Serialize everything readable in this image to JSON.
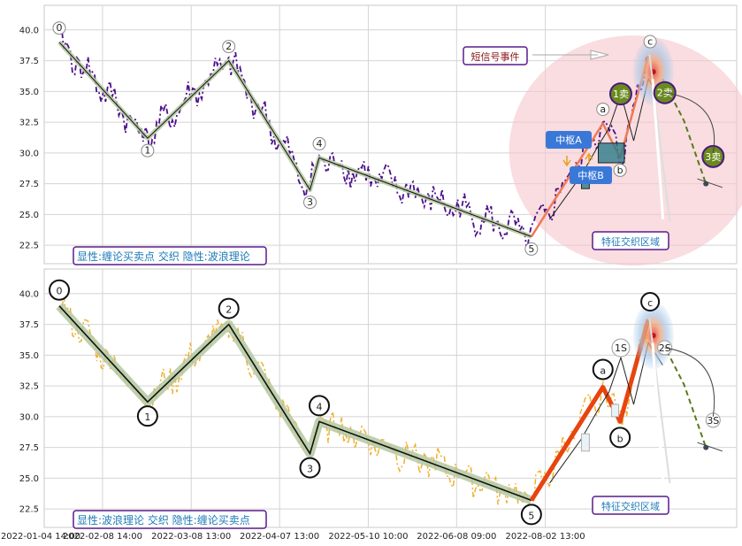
{
  "chart_data": [
    {
      "type": "line",
      "panel": "top",
      "caption": "显性:缠论买卖点 交织 隐性:波浪理论",
      "ylim": [
        21,
        42
      ],
      "yticks": [
        22.5,
        25.0,
        27.5,
        30.0,
        32.5,
        35.0,
        37.5,
        40.0
      ],
      "grid": true,
      "wave_points": [
        {
          "label": "0",
          "x": 0.6,
          "y": 39.0
        },
        {
          "label": "1",
          "x": 25.3,
          "y": 31.2
        },
        {
          "label": "2",
          "x": 48.0,
          "y": 37.5
        },
        {
          "label": "3",
          "x": 70.7,
          "y": 27.0
        },
        {
          "label": "4",
          "x": 73.3,
          "y": 29.6
        },
        {
          "label": "5",
          "x": 132.6,
          "y": 23.2
        }
      ],
      "abc_points": [
        {
          "label": "a",
          "x": 152.6,
          "y": 32.4
        },
        {
          "label": "b",
          "x": 157.4,
          "y": 29.6
        },
        {
          "label": "c",
          "x": 165.3,
          "y": 37.9
        }
      ],
      "zhongshu": [
        {
          "label": "中枢A",
          "x": [
            151.3,
            158.6
          ],
          "y": [
            29.2,
            30.8
          ]
        },
        {
          "label": "中枢B",
          "x": [
            146.6,
            148.8
          ],
          "y": [
            27.1,
            28.6
          ]
        }
      ],
      "sell_points": [
        {
          "label": "1卖",
          "x": 157.6,
          "y": 34.8
        },
        {
          "label": "2卖",
          "x": 169.9,
          "y": 34.9
        },
        {
          "label": "3卖",
          "x": 183.4,
          "y": 30.0
        }
      ],
      "forecast": [
        [
          169.3,
          36.0
        ],
        [
          175.3,
          32.6
        ],
        [
          181.4,
          27.5
        ]
      ],
      "annotations": {
        "short_signal": "短信号事件",
        "feature_zone": "特征交织区域"
      }
    },
    {
      "type": "line",
      "panel": "bottom",
      "caption": "显性:波浪理论 交织 隐性:缠论买卖点",
      "ylim": [
        21,
        42
      ],
      "yticks": [
        22.5,
        25.0,
        27.5,
        30.0,
        32.5,
        35.0,
        37.5,
        40.0
      ],
      "grid": true,
      "wave_points": [
        {
          "label": "0",
          "x": 0.6,
          "y": 39.0
        },
        {
          "label": "1",
          "x": 25.3,
          "y": 31.2
        },
        {
          "label": "2",
          "x": 48.0,
          "y": 37.5
        },
        {
          "label": "3",
          "x": 70.7,
          "y": 27.0
        },
        {
          "label": "4",
          "x": 73.3,
          "y": 29.6
        },
        {
          "label": "5",
          "x": 132.6,
          "y": 23.2
        }
      ],
      "abc_points": [
        {
          "label": "a",
          "x": 152.6,
          "y": 32.4
        },
        {
          "label": "b",
          "x": 157.4,
          "y": 29.6
        },
        {
          "label": "c",
          "x": 165.3,
          "y": 37.9
        }
      ],
      "sell_points": [
        {
          "label": "1S",
          "x": 157.6,
          "y": 35.6
        },
        {
          "label": "2S",
          "x": 169.9,
          "y": 35.6
        },
        {
          "label": "3S",
          "x": 183.4,
          "y": 30.0
        }
      ],
      "forecast": [
        [
          169.3,
          36.0
        ],
        [
          175.3,
          32.6
        ],
        [
          181.4,
          27.5
        ]
      ],
      "annotations": {
        "feature_zone": "特征交织区域"
      }
    }
  ],
  "xaxis": {
    "ticks": [
      {
        "label": "2022-01-04 14:00",
        "x": -12.0
      },
      {
        "label": "2022-02-08 14:00",
        "x": 12.7
      },
      {
        "label": "2022-03-08 13:00",
        "x": 37.5
      },
      {
        "label": "2022-04-07 13:00",
        "x": 62.2
      },
      {
        "label": "2022-05-10 10:00",
        "x": 87.0
      },
      {
        "label": "2022-06-08 09:00",
        "x": 111.7
      },
      {
        "label": "2022-08-02 13:00",
        "x": 136.5
      }
    ],
    "xlim": [
      -3.6,
      190.0
    ]
  },
  "colors": {
    "top_price": "#4b0f8c",
    "bottom_price": "#f0b030",
    "wave_fill": "#b4c8a0",
    "caption_text": "#1e7ab8",
    "caption_border": "#5a1a8c",
    "bottom_abc": "#e8440f",
    "top_abc": "#ee7a55",
    "sell_fill": "#6a8a1e",
    "zhongshu_fill": "#3a78d8",
    "short_signal_text": "#8a1515",
    "zone_pink": "#f5c6cc"
  }
}
